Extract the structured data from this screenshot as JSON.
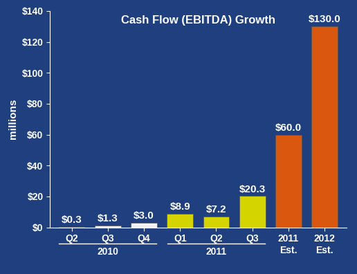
{
  "chart_data": {
    "type": "bar",
    "title": "Cash Flow (EBITDA) Growth",
    "y_label": "millions",
    "categories": [
      "Q2",
      "Q3",
      "Q4",
      "Q1",
      "Q2",
      "Q3",
      "2011\nEst.",
      "2012\nEst."
    ],
    "category_groups": [
      {
        "label": "2010",
        "size": 3
      },
      {
        "label": "2011",
        "size": 3
      }
    ],
    "values": [
      0.3,
      1.3,
      3.0,
      8.9,
      7.2,
      20.3,
      60.0,
      130.0
    ],
    "value_labels": [
      "$0.3",
      "$1.3",
      "$3.0",
      "$8.9",
      "$7.2",
      "$20.3",
      "$60.0",
      "$130.0"
    ],
    "colors": [
      "#f2f2f2",
      "#f2f2f2",
      "#f2f2f2",
      "#d4d400",
      "#d4d400",
      "#d4d400",
      "#d9570f",
      "#d9570f"
    ],
    "ylim": [
      0,
      140
    ],
    "yticks": [
      {
        "value": 0,
        "label": "$0"
      },
      {
        "value": 20,
        "label": "$20"
      },
      {
        "value": 40,
        "label": "$40"
      },
      {
        "value": 60,
        "label": "$60"
      },
      {
        "value": 80,
        "label": "$80"
      },
      {
        "value": 100,
        "label": "$100"
      },
      {
        "value": 120,
        "label": "$120"
      },
      {
        "value": 140,
        "label": "$140"
      }
    ],
    "data_labels": true,
    "grid": false
  }
}
